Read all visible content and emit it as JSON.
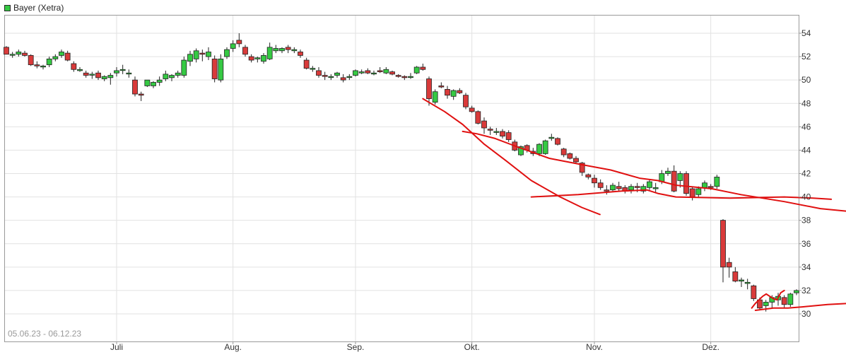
{
  "chart_data": {
    "type": "candlestick",
    "legend": "Bayer (Xetra)",
    "date_range": "05.06.23 - 06.12.23",
    "y_ticks": [
      30,
      32,
      34,
      36,
      38,
      40,
      42,
      44,
      46,
      48,
      50,
      52,
      54
    ],
    "x_ticks": [
      "Juli",
      "Aug.",
      "Sep.",
      "Okt.",
      "Nov.",
      "Dez."
    ],
    "x_tick_day_index": [
      18,
      37,
      57,
      76,
      96,
      115
    ],
    "grid": true,
    "colors": {
      "up": "#35c943",
      "down": "#d93a3a",
      "trendline": "#e01010",
      "grid": "#e2e2e2"
    },
    "candles": [
      [
        52.8,
        52.9,
        52.2,
        52.2
      ],
      [
        52.2,
        52.4,
        51.9,
        52.2
      ],
      [
        52.2,
        52.6,
        52.0,
        52.4
      ],
      [
        52.3,
        52.5,
        52.0,
        52.1
      ],
      [
        52.1,
        52.2,
        51.2,
        51.3
      ],
      [
        51.3,
        51.6,
        51.0,
        51.2
      ],
      [
        51.2,
        51.3,
        50.9,
        51.2
      ],
      [
        51.3,
        52.0,
        51.1,
        51.8
      ],
      [
        51.8,
        52.2,
        51.6,
        52.0
      ],
      [
        52.1,
        52.6,
        51.9,
        52.4
      ],
      [
        52.3,
        52.5,
        51.6,
        51.7
      ],
      [
        51.4,
        51.6,
        50.7,
        50.9
      ],
      [
        50.8,
        51.1,
        50.7,
        50.9
      ],
      [
        50.6,
        50.8,
        50.2,
        50.4
      ],
      [
        50.5,
        50.7,
        50.1,
        50.5
      ],
      [
        50.6,
        50.8,
        50.0,
        50.2
      ],
      [
        50.1,
        50.4,
        49.9,
        50.3
      ],
      [
        50.2,
        50.6,
        49.6,
        50.4
      ],
      [
        50.6,
        51.1,
        50.3,
        50.8
      ],
      [
        50.9,
        51.3,
        50.5,
        50.9
      ],
      [
        50.6,
        50.9,
        50.2,
        50.6
      ],
      [
        50.0,
        50.3,
        48.6,
        48.8
      ],
      [
        48.8,
        49.0,
        48.2,
        48.7
      ],
      [
        49.5,
        50.0,
        49.4,
        50.0
      ],
      [
        49.5,
        49.9,
        49.3,
        49.8
      ],
      [
        49.8,
        50.3,
        49.5,
        50.0
      ],
      [
        50.1,
        50.8,
        49.9,
        50.5
      ],
      [
        50.2,
        50.5,
        49.9,
        50.4
      ],
      [
        50.4,
        50.8,
        50.2,
        50.6
      ],
      [
        50.4,
        52.0,
        50.2,
        51.7
      ],
      [
        51.6,
        52.5,
        51.2,
        52.2
      ],
      [
        51.8,
        52.7,
        51.5,
        52.5
      ],
      [
        52.3,
        52.6,
        51.6,
        52.2
      ],
      [
        52.0,
        52.8,
        51.7,
        52.4
      ],
      [
        51.8,
        52.1,
        49.8,
        50.1
      ],
      [
        50.0,
        52.2,
        49.8,
        51.8
      ],
      [
        52.0,
        52.8,
        51.8,
        52.6
      ],
      [
        52.7,
        53.4,
        52.4,
        53.1
      ],
      [
        53.4,
        54.0,
        52.8,
        53.1
      ],
      [
        52.8,
        53.0,
        52.0,
        52.2
      ],
      [
        52.0,
        52.2,
        51.5,
        51.7
      ],
      [
        51.8,
        52.0,
        51.5,
        51.9
      ],
      [
        51.6,
        52.3,
        51.4,
        52.1
      ],
      [
        51.8,
        53.2,
        51.7,
        52.8
      ],
      [
        52.5,
        53.0,
        52.3,
        52.7
      ],
      [
        52.5,
        52.8,
        52.3,
        52.7
      ],
      [
        52.8,
        53.0,
        52.3,
        52.6
      ],
      [
        52.5,
        52.8,
        52.3,
        52.6
      ],
      [
        52.4,
        52.6,
        51.9,
        52.1
      ],
      [
        51.7,
        51.9,
        50.9,
        51.0
      ],
      [
        51.0,
        51.2,
        50.7,
        51.0
      ],
      [
        50.8,
        51.1,
        50.2,
        50.4
      ],
      [
        50.4,
        50.7,
        50.0,
        50.3
      ],
      [
        50.3,
        50.5,
        50.0,
        50.3
      ],
      [
        50.4,
        50.7,
        50.2,
        50.6
      ],
      [
        50.2,
        50.5,
        49.8,
        50.0
      ],
      [
        50.3,
        50.5,
        50.0,
        50.3
      ],
      [
        50.4,
        50.9,
        50.3,
        50.8
      ],
      [
        50.6,
        50.9,
        50.5,
        50.7
      ],
      [
        50.8,
        51.0,
        50.5,
        50.6
      ],
      [
        50.6,
        50.8,
        50.4,
        50.6
      ],
      [
        50.8,
        51.1,
        50.6,
        50.7
      ],
      [
        50.6,
        51.1,
        50.5,
        50.9
      ],
      [
        50.7,
        50.8,
        50.4,
        50.5
      ],
      [
        50.4,
        50.5,
        50.2,
        50.3
      ],
      [
        50.3,
        50.4,
        50.0,
        50.2
      ],
      [
        50.3,
        50.6,
        50.1,
        50.3
      ],
      [
        50.6,
        51.2,
        50.5,
        51.1
      ],
      [
        51.1,
        51.4,
        50.8,
        50.9
      ],
      [
        50.1,
        50.3,
        47.8,
        48.4
      ],
      [
        48.1,
        49.2,
        47.9,
        49.0
      ],
      [
        49.5,
        49.8,
        49.3,
        49.4
      ],
      [
        49.2,
        49.5,
        48.4,
        48.7
      ],
      [
        48.6,
        49.2,
        48.3,
        49.1
      ],
      [
        49.1,
        49.3,
        48.8,
        48.9
      ],
      [
        48.7,
        48.9,
        47.5,
        47.7
      ],
      [
        47.6,
        47.8,
        47.2,
        47.3
      ],
      [
        47.3,
        47.4,
        46.2,
        46.3
      ],
      [
        46.5,
        46.8,
        45.4,
        45.9
      ],
      [
        45.8,
        46.0,
        45.3,
        45.7
      ],
      [
        45.6,
        45.9,
        45.3,
        45.6
      ],
      [
        45.6,
        45.8,
        45.0,
        45.2
      ],
      [
        45.5,
        45.7,
        44.7,
        44.9
      ],
      [
        44.7,
        44.9,
        43.9,
        44.0
      ],
      [
        43.6,
        44.4,
        43.5,
        44.3
      ],
      [
        44.4,
        44.5,
        43.8,
        44.0
      ],
      [
        43.9,
        44.2,
        43.5,
        43.7
      ],
      [
        43.7,
        44.6,
        43.5,
        44.5
      ],
      [
        43.7,
        44.9,
        43.6,
        44.8
      ],
      [
        45.0,
        45.4,
        44.8,
        45.1
      ],
      [
        45.0,
        45.1,
        44.4,
        44.5
      ],
      [
        44.1,
        44.2,
        43.4,
        43.6
      ],
      [
        43.7,
        43.8,
        43.2,
        43.3
      ],
      [
        43.3,
        43.5,
        42.9,
        43.0
      ],
      [
        42.9,
        43.0,
        41.8,
        42.1
      ],
      [
        41.9,
        42.0,
        41.5,
        41.7
      ],
      [
        41.6,
        41.9,
        40.8,
        41.2
      ],
      [
        41.2,
        41.5,
        40.6,
        40.8
      ],
      [
        40.6,
        41.0,
        40.2,
        40.5
      ],
      [
        40.6,
        41.2,
        40.5,
        41.0
      ],
      [
        40.9,
        41.3,
        40.5,
        40.7
      ],
      [
        40.8,
        41.0,
        40.3,
        40.5
      ],
      [
        40.6,
        41.1,
        40.3,
        40.9
      ],
      [
        40.9,
        41.2,
        40.4,
        40.8
      ],
      [
        40.5,
        41.1,
        40.3,
        40.9
      ],
      [
        40.8,
        41.5,
        40.6,
        41.3
      ],
      [
        40.7,
        41.2,
        40.4,
        40.8
      ],
      [
        41.3,
        42.3,
        41.1,
        42.0
      ],
      [
        42.0,
        42.5,
        41.8,
        42.2
      ],
      [
        42.2,
        42.7,
        40.4,
        40.5
      ],
      [
        41.4,
        42.2,
        40.8,
        42.0
      ],
      [
        42.0,
        42.2,
        40.1,
        40.3
      ],
      [
        40.7,
        40.9,
        39.7,
        40.0
      ],
      [
        40.2,
        40.9,
        40.0,
        40.7
      ],
      [
        40.8,
        41.4,
        40.5,
        41.2
      ],
      [
        40.9,
        41.1,
        40.6,
        40.8
      ],
      [
        40.9,
        41.9,
        40.7,
        41.7
      ],
      [
        38.0,
        38.1,
        32.7,
        34.0
      ],
      [
        34.4,
        34.8,
        33.1,
        34.0
      ],
      [
        33.6,
        34.0,
        32.7,
        32.8
      ],
      [
        32.8,
        33.1,
        32.3,
        32.9
      ],
      [
        32.6,
        33.0,
        32.1,
        32.7
      ],
      [
        32.4,
        32.5,
        31.1,
        31.3
      ],
      [
        31.2,
        31.4,
        30.3,
        30.5
      ],
      [
        30.7,
        31.2,
        30.2,
        31.0
      ],
      [
        31.0,
        31.6,
        30.5,
        31.4
      ],
      [
        31.2,
        31.8,
        30.7,
        31.5
      ],
      [
        31.4,
        31.6,
        30.5,
        30.8
      ],
      [
        30.8,
        31.8,
        30.6,
        31.7
      ],
      [
        31.8,
        32.1,
        31.6,
        32.0
      ]
    ],
    "trendlines": [
      [
        [
          0,
          48.4
        ],
        [
          6,
          47.3
        ],
        [
          11,
          46.2
        ],
        [
          17,
          44.5
        ],
        [
          23,
          43.1
        ],
        [
          30,
          41.4
        ],
        [
          38,
          40.0
        ],
        [
          44,
          39.1
        ],
        [
          49,
          38.5
        ]
      ],
      [
        [
          30,
          40.0
        ],
        [
          43,
          40.2
        ],
        [
          55,
          40.5
        ],
        [
          62,
          40.6
        ],
        [
          65,
          40.3
        ],
        [
          70,
          40.0
        ],
        [
          85,
          39.9
        ],
        [
          100,
          40.0
        ],
        [
          108,
          39.9
        ],
        [
          113,
          39.8
        ]
      ],
      [
        [
          11,
          45.6
        ],
        [
          15,
          45.4
        ],
        [
          20,
          45.0
        ],
        [
          26,
          44.3
        ],
        [
          35,
          43.3
        ],
        [
          45,
          42.7
        ],
        [
          52,
          42.3
        ],
        [
          60,
          41.6
        ],
        [
          65,
          41.4
        ],
        [
          70,
          41.0
        ],
        [
          80,
          40.7
        ],
        [
          88,
          40.2
        ],
        [
          100,
          39.6
        ],
        [
          110,
          39.0
        ],
        [
          120,
          38.7
        ]
      ],
      [
        [
          92,
          30.3
        ],
        [
          97,
          30.5
        ],
        [
          101,
          30.5
        ],
        [
          105,
          30.6
        ],
        [
          112,
          30.8
        ],
        [
          118,
          30.9
        ],
        [
          124,
          30.9
        ]
      ],
      [
        [
          91,
          30.5
        ],
        [
          92,
          30.9
        ],
        [
          93,
          31.2
        ],
        [
          94,
          31.5
        ],
        [
          95,
          31.7
        ],
        [
          96,
          31.5
        ],
        [
          97,
          31.3
        ],
        [
          98,
          31.2
        ],
        [
          99,
          31.8
        ],
        [
          100,
          32.0
        ]
      ]
    ]
  }
}
